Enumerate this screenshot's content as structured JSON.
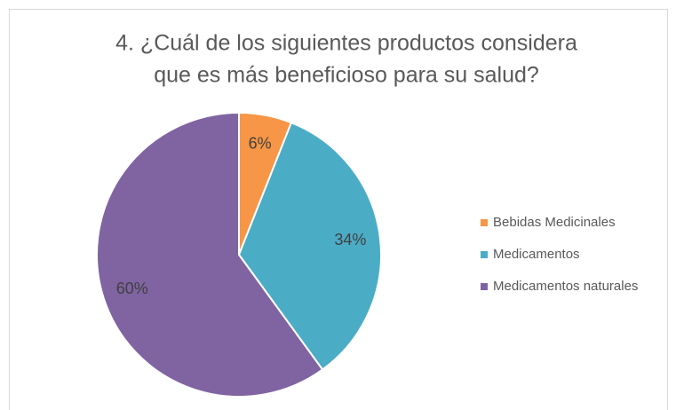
{
  "chart_data": {
    "type": "pie",
    "title": [
      "4. ¿Cuál de los siguientes productos considera",
      "que es más beneficioso para  su salud?"
    ],
    "categories": [
      "Bebidas Medicinales",
      "Medicamentos",
      "Medicamentos naturales"
    ],
    "values": [
      6,
      34,
      60
    ],
    "value_labels": [
      "6%",
      "34%",
      "60%"
    ],
    "colors": [
      "#f79646",
      "#4bacc6",
      "#8064a2"
    ],
    "legend": "right"
  }
}
